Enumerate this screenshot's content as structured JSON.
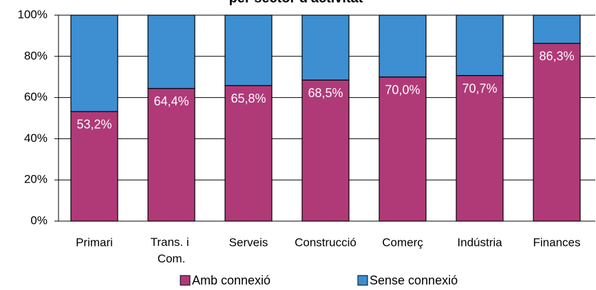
{
  "chart_data": {
    "type": "stacked_bar",
    "title": "per sector d'activitat",
    "categories": [
      "Primari",
      "Trans. i Com.",
      "Serveis",
      "Construcció",
      "Comerç",
      "Indústria",
      "Finances"
    ],
    "series": [
      {
        "name": "Amb connexió",
        "color": "#b03a78",
        "values": [
          53.2,
          64.4,
          65.8,
          68.5,
          70.0,
          70.7,
          86.3
        ],
        "value_labels": [
          "53,2%",
          "64,4%",
          "65,8%",
          "68,5%",
          "70,0%",
          "70,7%",
          "86,3%"
        ]
      },
      {
        "name": "Sense connexió",
        "color": "#3d8fd1",
        "values": [
          46.8,
          35.6,
          34.2,
          31.5,
          30.0,
          29.3,
          13.7
        ]
      }
    ],
    "ylim": [
      0,
      100
    ],
    "yticks": [
      {
        "value": 0,
        "label": "0%"
      },
      {
        "value": 20,
        "label": "20%"
      },
      {
        "value": 40,
        "label": "40%"
      },
      {
        "value": 60,
        "label": "60%"
      },
      {
        "value": 80,
        "label": "80%"
      },
      {
        "value": 100,
        "label": "100%"
      }
    ],
    "grid": true
  }
}
